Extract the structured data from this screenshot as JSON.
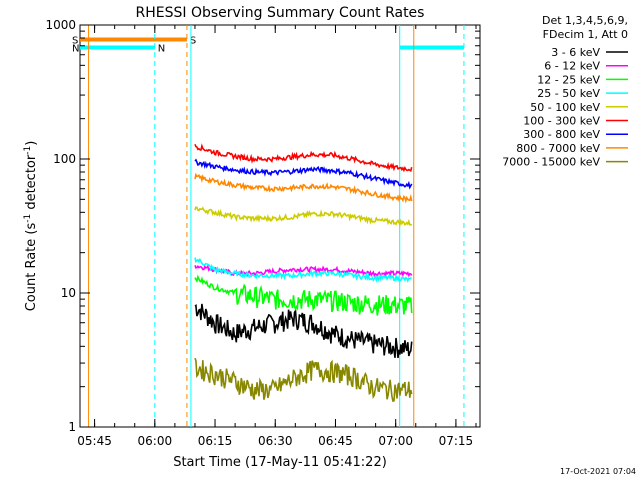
{
  "chart_data": {
    "type": "line",
    "title": "RHESSI Observing Summary Count Rates",
    "xlabel": "Start Time (17-May-11 05:41:22)",
    "ylabel": "Count Rate (s-1 detector-1)",
    "ylabel_parts": {
      "main": "Count Rate (s",
      "exp1": "-1",
      "mid": " detector",
      "exp2": "-1",
      "end": ")"
    },
    "y_scale": "log",
    "ylim": [
      1,
      1000
    ],
    "xlim": [
      "05:41:22",
      "07:21:00"
    ],
    "x_ticks": [
      "05:45",
      "06:00",
      "06:15",
      "06:30",
      "06:45",
      "07:00",
      "07:15"
    ],
    "y_ticks": [
      "1",
      "10",
      "100",
      "1000"
    ],
    "legend_header": [
      "Det 1,3,4,5,6,9,",
      "FDecim 1, Att 0"
    ],
    "legend_placement": "right",
    "series": [
      {
        "name": "3 - 6 keV",
        "color": "#000000",
        "t_start": "06:10",
        "t_end": "07:04",
        "values": [
          8,
          6,
          5,
          5.5,
          6,
          6.5,
          6,
          5,
          4.5,
          4.2,
          4,
          3.8
        ]
      },
      {
        "name": "6 - 12 keV",
        "color": "#ff00ff",
        "t_start": "06:10",
        "t_end": "07:04",
        "values": [
          16,
          15,
          14,
          14,
          14.5,
          15,
          15,
          15,
          14.5,
          14,
          14,
          14
        ]
      },
      {
        "name": "12 - 25 keV",
        "color": "#00ff00",
        "t_start": "06:10",
        "t_end": "07:04",
        "values": [
          13,
          11,
          10,
          9.5,
          9,
          9,
          9,
          8.8,
          8.5,
          8.3,
          8.2,
          8
        ]
      },
      {
        "name": "25 - 50 keV",
        "color": "#00ffff",
        "t_start": "06:10",
        "t_end": "07:04",
        "values": [
          18,
          15,
          14,
          13.5,
          13.5,
          13.5,
          14,
          14,
          13.5,
          13,
          13,
          12.5
        ]
      },
      {
        "name": "50 - 100 keV",
        "color": "#cccc00",
        "t_start": "06:10",
        "t_end": "07:04",
        "values": [
          43,
          40,
          37,
          36,
          36,
          37,
          39,
          39,
          37,
          35,
          34,
          33
        ]
      },
      {
        "name": "100 - 300 keV",
        "color": "#ff0000",
        "t_start": "06:10",
        "t_end": "07:04",
        "values": [
          125,
          112,
          105,
          100,
          100,
          104,
          108,
          107,
          100,
          92,
          87,
          84
        ]
      },
      {
        "name": "300 - 800 keV",
        "color": "#0000ff",
        "t_start": "06:10",
        "t_end": "07:04",
        "values": [
          95,
          88,
          83,
          80,
          79,
          81,
          84,
          82,
          78,
          72,
          67,
          63
        ]
      },
      {
        "name": "800 - 7000 keV",
        "color": "#ff8800",
        "t_start": "06:10",
        "t_end": "07:04",
        "values": [
          74,
          68,
          64,
          61,
          60,
          61,
          63,
          62,
          59,
          55,
          52,
          50
        ]
      },
      {
        "name": "7000 - 15000 keV",
        "color": "#888800",
        "t_start": "06:10",
        "t_end": "07:04",
        "values": [
          2.8,
          2.5,
          2.2,
          1.9,
          1.9,
          2.3,
          2.7,
          2.6,
          2.4,
          2,
          1.9,
          1.9
        ]
      }
    ],
    "annotations": [
      {
        "label": "S",
        "color": "#ff8800",
        "from": "05:41:22",
        "to": "06:08",
        "level": 780
      },
      {
        "label": "N",
        "color": "#00ffff",
        "from": "05:41:22",
        "to": "06:00",
        "level": 680
      },
      {
        "label": "",
        "color": "#00ffff",
        "from": "07:01",
        "to": "07:17",
        "level": 680
      }
    ]
  },
  "footer": {
    "date": "17-Oct-2021 07:04"
  }
}
